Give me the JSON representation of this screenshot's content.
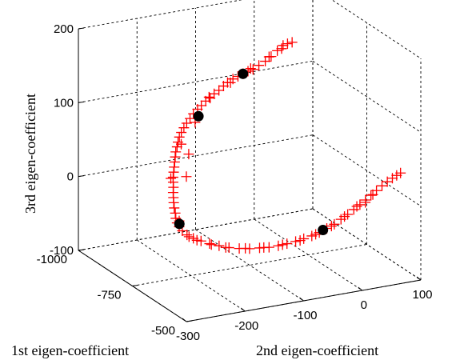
{
  "chart_data": {
    "type": "scatter",
    "dimensions": 3,
    "title": "",
    "xlabel": "1st eigen-coefficient",
    "ylabel": "2nd eigen-coefficient",
    "zlabel": "3rd eigen-coefficient",
    "xlim": [
      -1000,
      -500
    ],
    "ylim": [
      -300,
      100
    ],
    "zlim": [
      -100,
      200
    ],
    "xticks": [
      "-1000",
      "-750",
      "-500"
    ],
    "yticks": [
      "-300",
      "-200",
      "-100",
      "0",
      "100"
    ],
    "zticks": [
      "-100",
      "0",
      "100",
      "200"
    ],
    "grid": true,
    "series": [
      {
        "marker": "plus",
        "color": "#ff0000",
        "points": [
          [
            -850,
            -6,
            165
          ],
          [
            -843,
            -1,
            168
          ],
          [
            -838,
            5,
            170
          ],
          [
            -846,
            -10,
            162
          ],
          [
            -855,
            -14,
            158
          ],
          [
            -862,
            -22,
            150
          ],
          [
            -870,
            -29,
            143
          ],
          [
            -878,
            -37,
            137
          ],
          [
            -886,
            -44,
            131
          ],
          [
            -893,
            -50,
            128
          ],
          [
            -900,
            -56,
            124
          ],
          [
            -907,
            -62,
            120
          ],
          [
            -914,
            -68,
            116
          ],
          [
            -920,
            -75,
            111
          ],
          [
            -925,
            -80,
            106
          ],
          [
            -930,
            -86,
            100
          ],
          [
            -936,
            -92,
            95
          ],
          [
            -941,
            -97,
            89
          ],
          [
            -945,
            -103,
            85
          ],
          [
            -949,
            -109,
            79
          ],
          [
            -953,
            -114,
            74
          ],
          [
            -956,
            -120,
            68
          ],
          [
            -958,
            -125,
            62
          ],
          [
            -960,
            -130,
            56
          ],
          [
            -962,
            -134,
            50
          ],
          [
            -963,
            -138,
            44
          ],
          [
            -964,
            -141,
            38
          ],
          [
            -962,
            -144,
            32
          ],
          [
            -961,
            -146,
            26
          ],
          [
            -959,
            -149,
            20
          ],
          [
            -956,
            -151,
            14
          ],
          [
            -953,
            -153,
            8
          ],
          [
            -950,
            -155,
            2
          ],
          [
            -947,
            -157,
            -4
          ],
          [
            -944,
            -159,
            -10
          ],
          [
            -941,
            -160,
            -16
          ],
          [
            -937,
            -161,
            -22
          ],
          [
            -933,
            -163,
            -28
          ],
          [
            -929,
            -164,
            -34
          ],
          [
            -925,
            -165,
            -40
          ],
          [
            -920,
            -166,
            -46
          ],
          [
            -915,
            -166,
            -52
          ],
          [
            -910,
            -167,
            -58
          ],
          [
            -904,
            -167,
            -63
          ],
          [
            -897,
            -166,
            -67
          ],
          [
            -888,
            -164,
            -71
          ],
          [
            -877,
            -160,
            -75
          ],
          [
            -864,
            -154,
            -78
          ],
          [
            -850,
            -146,
            -80
          ],
          [
            -835,
            -137,
            -82
          ],
          [
            -818,
            -127,
            -83
          ],
          [
            -802,
            -116,
            -84
          ],
          [
            -787,
            -104,
            -84
          ],
          [
            -772,
            -92,
            -83
          ],
          [
            -758,
            -80,
            -81
          ],
          [
            -744,
            -69,
            -79
          ],
          [
            -731,
            -58,
            -76
          ],
          [
            -718,
            -48,
            -72
          ],
          [
            -705,
            -38,
            -68
          ],
          [
            -692,
            -29,
            -63
          ],
          [
            -679,
            -20,
            -58
          ],
          [
            -666,
            -12,
            -52
          ],
          [
            -653,
            -4,
            -45
          ],
          [
            -640,
            4,
            -38
          ],
          [
            -628,
            11,
            -30
          ],
          [
            -616,
            18,
            -22
          ],
          [
            -604,
            24,
            -14
          ],
          [
            -592,
            30,
            -6
          ],
          [
            -580,
            35,
            2
          ],
          [
            -568,
            40,
            10
          ],
          [
            -556,
            45,
            18
          ],
          [
            -544,
            50,
            26
          ],
          [
            -533,
            55,
            33
          ],
          [
            -523,
            60,
            39
          ],
          [
            -514,
            64,
            44
          ],
          [
            -507,
            68,
            48
          ],
          [
            -562,
            41,
            12
          ],
          [
            -575,
            33,
            0
          ],
          [
            -598,
            27,
            -9
          ],
          [
            -620,
            14,
            -25
          ],
          [
            -645,
            1,
            -41
          ],
          [
            -672,
            -16,
            -55
          ],
          [
            -698,
            -33,
            -66
          ],
          [
            -725,
            -53,
            -74
          ],
          [
            -752,
            -75,
            -80
          ],
          [
            -778,
            -97,
            -83
          ],
          [
            -806,
            -120,
            -84
          ],
          [
            -832,
            -135,
            -83
          ],
          [
            -858,
            -150,
            -80
          ],
          [
            -873,
            -158,
            -77
          ],
          [
            -918,
            -146,
            -6
          ],
          [
            -926,
            -139,
            22
          ],
          [
            -931,
            -150,
            36
          ],
          [
            -948,
            -120,
            58
          ],
          [
            -935,
            -101,
            92
          ],
          [
            -912,
            -73,
            112
          ],
          [
            -889,
            -47,
            132
          ],
          [
            -866,
            -24,
            149
          ],
          [
            -952,
            -160,
            -13
          ],
          [
            -905,
            -163,
            -61
          ]
        ]
      },
      {
        "marker": "filled-circle",
        "color": "#000000",
        "points": [
          [
            -900,
            -56,
            124
          ],
          [
            -946,
            -115,
            66
          ],
          [
            -896,
            -166,
            -63
          ],
          [
            -660,
            -8,
            -48
          ]
        ]
      }
    ]
  }
}
